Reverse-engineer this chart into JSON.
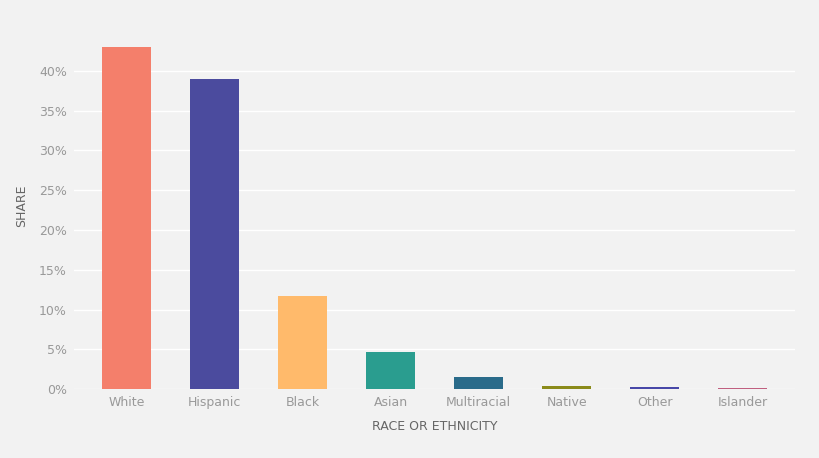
{
  "categories": [
    "White",
    "Hispanic",
    "Black",
    "Asian",
    "Multiracial",
    "Native",
    "Other",
    "Islander"
  ],
  "values": [
    43.0,
    39.0,
    11.7,
    4.7,
    1.6,
    0.4,
    0.3,
    0.15
  ],
  "bar_colors": [
    "#F47F6B",
    "#4B4B9E",
    "#FFBA6B",
    "#2A9D8F",
    "#2A6B8A",
    "#8B8B1A",
    "#4848A8",
    "#C06080"
  ],
  "title": "",
  "xlabel": "RACE OR ETHNICITY",
  "ylabel": "SHARE",
  "ylim": [
    0,
    46
  ],
  "yticks": [
    0,
    5,
    10,
    15,
    20,
    25,
    30,
    35,
    40
  ],
  "background_color": "#F2F2F2",
  "grid_color": "#FFFFFF",
  "tick_label_color": "#999999",
  "axis_label_color": "#666666",
  "bar_width": 0.55
}
